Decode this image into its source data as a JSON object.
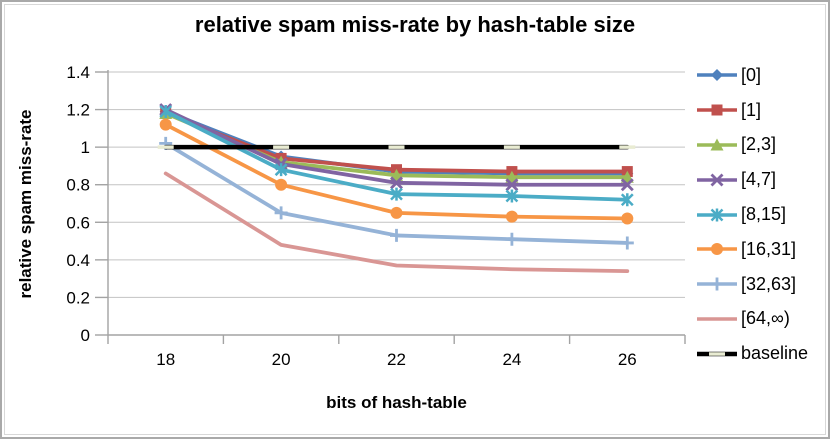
{
  "chart_data": {
    "type": "line",
    "title": "relative spam miss-rate by hash-table size",
    "xlabel": "bits of hash-table",
    "ylabel": "relative spam miss-rate",
    "x_tick_labels": [
      "18",
      "20",
      "22",
      "24",
      "26"
    ],
    "y_ticks": [
      0,
      0.2,
      0.4,
      0.6,
      0.8,
      1.0,
      1.2,
      1.4
    ],
    "y_tick_labels": [
      "0",
      "0.2",
      "0.4",
      "0.6",
      "0.8",
      "1",
      "1.2",
      "1.4"
    ],
    "ylim": [
      0,
      1.4
    ],
    "grid": "horizontal",
    "legend_position": "right",
    "axis_color": "#a3a3a3",
    "gridline_color": "#c3c3c3",
    "series": [
      {
        "name": "[0]",
        "color": "#4F81BD",
        "marker": "diamond",
        "values": [
          1.19,
          0.95,
          0.87,
          0.86,
          0.86
        ]
      },
      {
        "name": "[1]",
        "color": "#C0504D",
        "marker": "square",
        "values": [
          1.18,
          0.94,
          0.88,
          0.87,
          0.87
        ]
      },
      {
        "name": "[2,3]",
        "color": "#9BBB59",
        "marker": "triangle",
        "values": [
          1.18,
          0.92,
          0.85,
          0.84,
          0.84
        ]
      },
      {
        "name": "[4,7]",
        "color": "#8064A2",
        "marker": "x",
        "values": [
          1.2,
          0.91,
          0.81,
          0.8,
          0.8
        ]
      },
      {
        "name": "[8,15]",
        "color": "#4BACC6",
        "marker": "asterisk",
        "values": [
          1.19,
          0.88,
          0.75,
          0.74,
          0.72
        ]
      },
      {
        "name": "[16,31]",
        "color": "#F79646",
        "marker": "circle",
        "values": [
          1.12,
          0.8,
          0.65,
          0.63,
          0.62
        ]
      },
      {
        "name": "[32,63]",
        "color": "#95B3D7",
        "marker": "plus",
        "values": [
          1.02,
          0.65,
          0.53,
          0.51,
          0.49
        ]
      },
      {
        "name": "[64,∞)",
        "color": "#D99694",
        "marker": "none",
        "values": [
          0.86,
          0.48,
          0.37,
          0.35,
          0.34
        ]
      },
      {
        "name": "baseline",
        "color": "#000000",
        "marker": "dash",
        "values": [
          1.0,
          1.0,
          1.0,
          1.0,
          1.0
        ]
      }
    ],
    "dash_marker_color": "#e9ecd3"
  }
}
